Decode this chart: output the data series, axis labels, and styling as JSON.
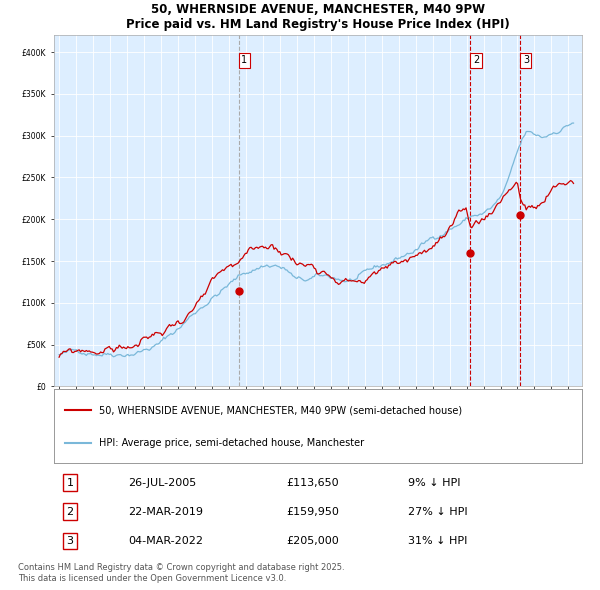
{
  "title1": "50, WHERNSIDE AVENUE, MANCHESTER, M40 9PW",
  "title2": "Price paid vs. HM Land Registry's House Price Index (HPI)",
  "legend_line1": "50, WHERNSIDE AVENUE, MANCHESTER, M40 9PW (semi-detached house)",
  "legend_line2": "HPI: Average price, semi-detached house, Manchester",
  "transaction1_date": "26-JUL-2005",
  "transaction1_price": 113650,
  "transaction1_pct": "9% ↓ HPI",
  "transaction2_date": "22-MAR-2019",
  "transaction2_price": 159950,
  "transaction2_pct": "27% ↓ HPI",
  "transaction3_date": "04-MAR-2022",
  "transaction3_price": 205000,
  "transaction3_pct": "31% ↓ HPI",
  "footer": "Contains HM Land Registry data © Crown copyright and database right 2025.\nThis data is licensed under the Open Government Licence v3.0.",
  "hpi_color": "#7ab8d9",
  "price_color": "#cc0000",
  "vline1_color": "#aaaaaa",
  "vline23_color": "#cc0000",
  "background_color": "#ddeeff",
  "ylim": [
    0,
    420000
  ],
  "transaction1_x": 2005.57,
  "transaction2_x": 2019.22,
  "transaction3_x": 2022.17,
  "hpi_anchors_x": [
    1995.0,
    1996.0,
    1997.0,
    1998.0,
    1999.0,
    2000.0,
    2001.0,
    2002.0,
    2003.0,
    2004.0,
    2005.0,
    2006.0,
    2007.0,
    2007.8,
    2008.5,
    2009.0,
    2009.5,
    2010.0,
    2011.0,
    2012.0,
    2013.0,
    2014.0,
    2015.0,
    2016.0,
    2017.0,
    2018.0,
    2019.0,
    2019.5,
    2020.0,
    2020.5,
    2021.0,
    2021.5,
    2022.0,
    2022.5,
    2023.0,
    2023.5,
    2024.0,
    2024.5,
    2025.3
  ],
  "hpi_anchors_y": [
    38000,
    40000,
    43000,
    46000,
    50000,
    56000,
    64000,
    80000,
    100000,
    120000,
    135000,
    148000,
    158000,
    160000,
    152000,
    140000,
    138000,
    140000,
    138000,
    135000,
    138000,
    145000,
    155000,
    165000,
    178000,
    193000,
    205000,
    210000,
    212000,
    218000,
    228000,
    248000,
    278000,
    300000,
    295000,
    292000,
    298000,
    305000,
    315000
  ],
  "prop_anchors_x": [
    1995.0,
    1996.0,
    1997.0,
    1998.0,
    1999.0,
    2000.0,
    2001.0,
    2002.0,
    2003.0,
    2004.0,
    2005.0,
    2005.57,
    2006.0,
    2007.0,
    2007.8,
    2008.5,
    2009.0,
    2009.5,
    2010.0,
    2011.0,
    2012.0,
    2013.0,
    2014.0,
    2015.0,
    2016.0,
    2017.0,
    2018.0,
    2019.0,
    2019.22,
    2019.5,
    2020.0,
    2020.5,
    2021.0,
    2021.5,
    2022.0,
    2022.17,
    2022.5,
    2023.0,
    2023.5,
    2024.0,
    2024.5,
    2025.3
  ],
  "prop_anchors_y": [
    35000,
    36500,
    39000,
    41500,
    45000,
    50000,
    58000,
    72000,
    91000,
    108000,
    120000,
    113650,
    125000,
    137000,
    139000,
    133000,
    122000,
    120000,
    122000,
    121000,
    119000,
    121000,
    128000,
    135000,
    146000,
    158000,
    170000,
    180000,
    159950,
    165000,
    170000,
    185000,
    198000,
    215000,
    225000,
    205000,
    195000,
    190000,
    195000,
    205000,
    210000,
    215000
  ]
}
